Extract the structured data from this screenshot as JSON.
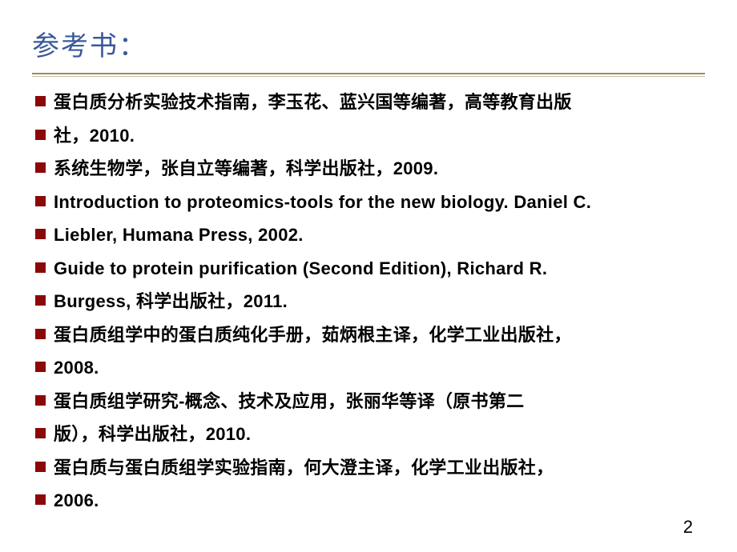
{
  "slide": {
    "title": "参考书：",
    "title_color": "#3b5998",
    "title_fontsize": 34,
    "divider_color": "#9b8b6d",
    "divider_shadow": "#cdbf9e",
    "bullet_color": "#8a0808",
    "bullet_size": 13,
    "text_color": "#000000",
    "text_fontsize": 22,
    "background_color": "#ffffff",
    "lines": [
      "蛋白质分析实验技术指南，李玉花、蓝兴国等编著，高等教育出版",
      " 社，2010.",
      "系统生物学，张自立等编著，科学出版社，2009.",
      "Introduction to proteomics-tools for the new biology. Daniel C.",
      " Liebler, Humana Press, 2002.",
      "Guide to protein purification (Second Edition), Richard R.",
      " Burgess,  科学出版社，2011.",
      "蛋白质组学中的蛋白质纯化手册，茹炳根主译，化学工业出版社，",
      " 2008.",
      "蛋白质组学研究-概念、技术及应用，张丽华等译（原书第二",
      "  版），科学出版社，2010.",
      "蛋白质与蛋白质组学实验指南，何大澄主译，化学工业出版社，",
      "  2006."
    ],
    "page_number": "2"
  }
}
